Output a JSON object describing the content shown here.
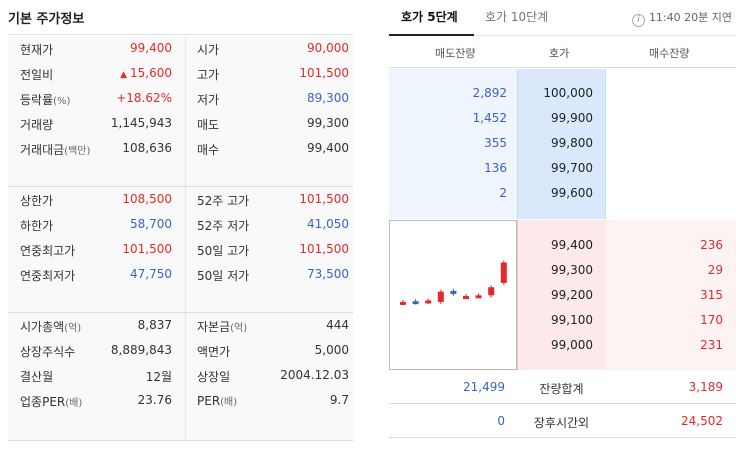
{
  "left": {
    "title": "기본 주가정보",
    "section1": [
      {
        "k1": "현재가",
        "k1_sub": "",
        "v1": "99,400",
        "v1_color": "red",
        "k2": "시가",
        "k2_sub": "",
        "v2": "90,000",
        "v2_color": "red"
      },
      {
        "k1": "전일비",
        "k1_sub": "",
        "v1": "15,600",
        "v1_color": "red",
        "v1_arrow": "▲",
        "k2": "고가",
        "k2_sub": "",
        "v2": "101,500",
        "v2_color": "red"
      },
      {
        "k1": "등락률",
        "k1_sub": "(%)",
        "v1": "+18.62%",
        "v1_color": "red",
        "k2": "저가",
        "k2_sub": "",
        "v2": "89,300",
        "v2_color": "blue"
      },
      {
        "k1": "거래량",
        "k1_sub": "",
        "v1": "1,145,943",
        "v1_color": "",
        "k2": "매도",
        "k2_sub": "",
        "v2": "99,300",
        "v2_color": ""
      },
      {
        "k1": "거래대금",
        "k1_sub": "(백만)",
        "v1": "108,636",
        "v1_color": "",
        "k2": "매수",
        "k2_sub": "",
        "v2": "99,400",
        "v2_color": ""
      }
    ],
    "section2": [
      {
        "k1": "상한가",
        "k1_sub": "",
        "v1": "108,500",
        "v1_color": "red",
        "k2": "52주 고가",
        "k2_sub": "",
        "v2": "101,500",
        "v2_color": "red"
      },
      {
        "k1": "하한가",
        "k1_sub": "",
        "v1": "58,700",
        "v1_color": "blue",
        "k2": "52주 저가",
        "k2_sub": "",
        "v2": "41,050",
        "v2_color": "blue"
      },
      {
        "k1": "연중최고가",
        "k1_sub": "",
        "v1": "101,500",
        "v1_color": "red",
        "k2": "50일 고가",
        "k2_sub": "",
        "v2": "101,500",
        "v2_color": "red"
      },
      {
        "k1": "연중최저가",
        "k1_sub": "",
        "v1": "47,750",
        "v1_color": "blue",
        "k2": "50일 저가",
        "k2_sub": "",
        "v2": "73,500",
        "v2_color": "blue"
      }
    ],
    "section3": [
      {
        "k1": "시가총액",
        "k1_sub": "(억)",
        "v1": "8,837",
        "v1_color": "",
        "k2": "자본금",
        "k2_sub": "(억)",
        "v2": "444",
        "v2_color": ""
      },
      {
        "k1": "상장주식수",
        "k1_sub": "",
        "v1": "8,889,843",
        "v1_color": "",
        "k2": "액면가",
        "k2_sub": "",
        "v2": "5,000",
        "v2_color": ""
      },
      {
        "k1": "결산월",
        "k1_sub": "",
        "v1": "12월",
        "v1_color": "",
        "k2": "상장일",
        "k2_sub": "",
        "v2": "2004.12.03",
        "v2_color": ""
      },
      {
        "k1": "업종PER",
        "k1_sub": "(배)",
        "v1": "23.76",
        "v1_color": "",
        "k2": "PER",
        "k2_sub": "(배)",
        "v2": "9.7",
        "v2_color": ""
      }
    ]
  },
  "right": {
    "tabs": [
      "호가 5단계",
      "호가 10단계"
    ],
    "delay_icon": "i",
    "delay_text": "11:40 20분 지연",
    "headers": {
      "ask_qty": "매도잔량",
      "price": "호가",
      "bid_qty": "매수잔량"
    },
    "asks": [
      {
        "qty": "2,892",
        "price": "100,000"
      },
      {
        "qty": "1,452",
        "price": "99,900"
      },
      {
        "qty": "355",
        "price": "99,800"
      },
      {
        "qty": "136",
        "price": "99,700"
      },
      {
        "qty": "2",
        "price": "99,600"
      }
    ],
    "bids": [
      {
        "price": "99,400",
        "qty": "236"
      },
      {
        "price": "99,300",
        "qty": "29"
      },
      {
        "price": "99,200",
        "qty": "315"
      },
      {
        "price": "99,100",
        "qty": "170"
      },
      {
        "price": "99,000",
        "qty": "231"
      }
    ],
    "totals": {
      "ask": "21,499",
      "label": "잔량합계",
      "bid": "3,189"
    },
    "afterhours": {
      "ask": "0",
      "label": "장후시간외",
      "bid": "24,502"
    },
    "colors": {
      "up": "#e22a2a",
      "down": "#3a62c7"
    },
    "mini_chart": [
      {
        "dir": "up",
        "o": 0.42,
        "c": 0.44
      },
      {
        "dir": "down",
        "o": 0.45,
        "c": 0.43
      },
      {
        "dir": "up",
        "o": 0.44,
        "c": 0.46
      },
      {
        "dir": "up",
        "o": 0.44,
        "c": 0.58
      },
      {
        "dir": "down",
        "o": 0.59,
        "c": 0.55
      },
      {
        "dir": "up",
        "o": 0.51,
        "c": 0.52
      },
      {
        "dir": "up",
        "o": 0.52,
        "c": 0.53
      },
      {
        "dir": "up",
        "o": 0.53,
        "c": 0.64
      },
      {
        "dir": "up",
        "o": 0.7,
        "c": 0.98
      }
    ]
  }
}
